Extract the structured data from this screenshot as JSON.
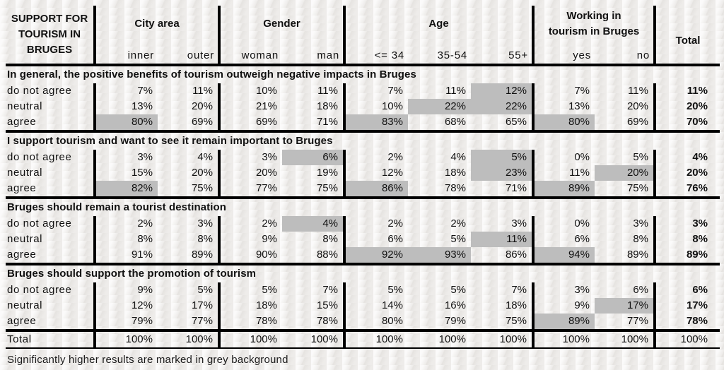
{
  "page": {
    "background_color": "#eeecea",
    "highlight_color": "#bdbdbd",
    "footnote": "Significantly higher results are marked in grey background"
  },
  "table": {
    "corner_title": "SUPPORT FOR TOURISM IN BRUGES",
    "column_groups": [
      {
        "label": "City area",
        "subcolumns": [
          "inner",
          "outer"
        ]
      },
      {
        "label": "Gender",
        "subcolumns": [
          "woman",
          "man"
        ]
      },
      {
        "label": "Age",
        "subcolumns": [
          "<= 34",
          "35-54",
          "55+"
        ]
      },
      {
        "label": "Working in\ntourism in Bruges",
        "subcolumns": [
          "yes",
          "no"
        ]
      },
      {
        "label": "Total",
        "subcolumns": []
      }
    ],
    "columns_order": [
      "inner",
      "outer",
      "woman",
      "man",
      "<= 34",
      "35-54",
      "55+",
      "yes",
      "no",
      "Total"
    ],
    "sections": [
      {
        "title": "In general, the positive benefits of tourism outweigh negative impacts in Bruges",
        "rows": [
          {
            "label": "do not agree",
            "values": [
              "7%",
              "11%",
              "10%",
              "11%",
              "7%",
              "11%",
              "12%",
              "7%",
              "11%",
              "11%"
            ],
            "highlight": [
              6
            ]
          },
          {
            "label": "neutral",
            "values": [
              "13%",
              "20%",
              "21%",
              "18%",
              "10%",
              "22%",
              "22%",
              "13%",
              "20%",
              "20%"
            ],
            "highlight": [
              5,
              6
            ]
          },
          {
            "label": "agree",
            "values": [
              "80%",
              "69%",
              "69%",
              "71%",
              "83%",
              "68%",
              "65%",
              "80%",
              "69%",
              "70%"
            ],
            "highlight": [
              0,
              4,
              7
            ]
          }
        ]
      },
      {
        "title": "I support tourism and want to see it remain important to Bruges",
        "rows": [
          {
            "label": "do not agree",
            "values": [
              "3%",
              "4%",
              "3%",
              "6%",
              "2%",
              "4%",
              "5%",
              "0%",
              "5%",
              "4%"
            ],
            "highlight": [
              3,
              6
            ]
          },
          {
            "label": "neutral",
            "values": [
              "15%",
              "20%",
              "20%",
              "19%",
              "12%",
              "18%",
              "23%",
              "11%",
              "20%",
              "20%"
            ],
            "highlight": [
              6,
              8
            ]
          },
          {
            "label": "agree",
            "values": [
              "82%",
              "75%",
              "77%",
              "75%",
              "86%",
              "78%",
              "71%",
              "89%",
              "75%",
              "76%"
            ],
            "highlight": [
              0,
              4,
              7
            ]
          }
        ]
      },
      {
        "title": "Bruges should remain a tourist destination",
        "rows": [
          {
            "label": "do not agree",
            "values": [
              "2%",
              "3%",
              "2%",
              "4%",
              "2%",
              "2%",
              "3%",
              "0%",
              "3%",
              "3%"
            ],
            "highlight": [
              3
            ]
          },
          {
            "label": "neutral",
            "values": [
              "8%",
              "8%",
              "9%",
              "8%",
              "6%",
              "5%",
              "11%",
              "6%",
              "8%",
              "8%"
            ],
            "highlight": [
              6
            ]
          },
          {
            "label": "agree",
            "values": [
              "91%",
              "89%",
              "90%",
              "88%",
              "92%",
              "93%",
              "86%",
              "94%",
              "89%",
              "89%"
            ],
            "highlight": [
              4,
              5,
              7
            ]
          }
        ]
      },
      {
        "title": "Bruges should support the promotion of tourism",
        "rows": [
          {
            "label": "do not agree",
            "values": [
              "9%",
              "5%",
              "5%",
              "7%",
              "5%",
              "5%",
              "7%",
              "3%",
              "6%",
              "6%"
            ],
            "highlight": []
          },
          {
            "label": "neutral",
            "values": [
              "12%",
              "17%",
              "18%",
              "15%",
              "14%",
              "16%",
              "18%",
              "9%",
              "17%",
              "17%"
            ],
            "highlight": [
              8
            ]
          },
          {
            "label": "agree",
            "values": [
              "79%",
              "77%",
              "78%",
              "78%",
              "80%",
              "79%",
              "75%",
              "89%",
              "77%",
              "78%"
            ],
            "highlight": [
              7
            ]
          }
        ]
      }
    ],
    "total_row": {
      "label": "Total",
      "values": [
        "100%",
        "100%",
        "100%",
        "100%",
        "100%",
        "100%",
        "100%",
        "100%",
        "100%",
        "100%"
      ],
      "highlight": []
    }
  }
}
